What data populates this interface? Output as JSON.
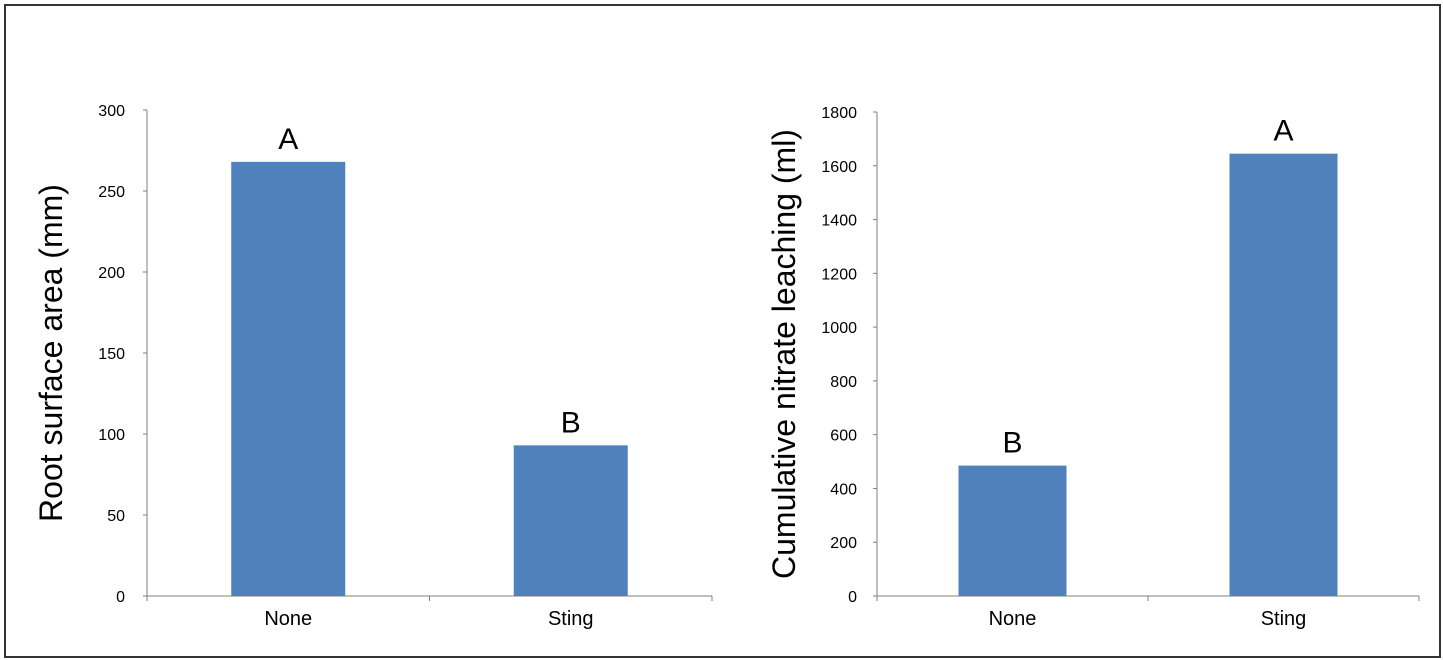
{
  "chart_data": [
    {
      "type": "bar",
      "categories": [
        "None",
        "Sting"
      ],
      "values": [
        268,
        93
      ],
      "data_labels": [
        "A",
        "B"
      ],
      "ylabel": "Root surface area (mm)",
      "xlabel": "",
      "ylim": [
        0,
        300
      ],
      "yticks": [
        "0",
        "50",
        "100",
        "150",
        "200",
        "250",
        "300"
      ],
      "grid": false,
      "bar_color": "#4f81bd"
    },
    {
      "type": "bar",
      "categories": [
        "None",
        "Sting"
      ],
      "values": [
        485,
        1645
      ],
      "data_labels": [
        "B",
        "A"
      ],
      "ylabel": "Cumulative nitrate leaching (ml)",
      "xlabel": "",
      "ylim": [
        0,
        1800
      ],
      "yticks": [
        "0",
        "200",
        "400",
        "600",
        "800",
        "1000",
        "1200",
        "1400",
        "1600",
        "1800"
      ],
      "grid": false,
      "bar_color": "#4f81bd"
    }
  ]
}
